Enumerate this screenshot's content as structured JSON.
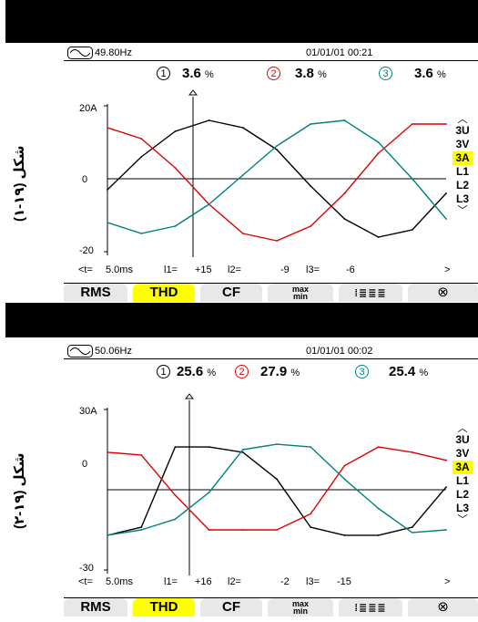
{
  "figures": [
    {
      "caption": "شكل (١٩-١)",
      "status": {
        "frequency": "49.80Hz",
        "datetime": "01/01/01 00:21"
      },
      "readings": [
        {
          "channel": "1",
          "value": "3.6",
          "unit": "%",
          "color": "#000000"
        },
        {
          "channel": "2",
          "value": "3.8",
          "unit": "%",
          "color": "#e00000"
        },
        {
          "channel": "3",
          "value": "3.6",
          "unit": "%",
          "color": "#008080"
        }
      ],
      "axis": {
        "top": "20A",
        "zero": "0",
        "bottom": "-20"
      },
      "channels": {
        "items": [
          "3U",
          "3V",
          "3A",
          "L1",
          "L2",
          "L3"
        ],
        "selected": "3A"
      },
      "cursor": {
        "t_label": "<t=",
        "t_value": "5.0ms",
        "l1_label": "l1=",
        "l1_value": "+15",
        "l2_label": "l2=",
        "l2_value": "-9",
        "l3_label": "l3=",
        "l3_value": "-6",
        "arrow": ">"
      },
      "tabs": [
        "RMS",
        "THD",
        "CF",
        "max min",
        "bars",
        "zoom"
      ],
      "selected_tab": "THD",
      "chart_data": {
        "type": "line",
        "ylabel": "A",
        "ylim": [
          -20,
          20
        ],
        "x_ms": [
          0,
          2,
          4,
          6,
          8,
          10,
          12,
          14,
          16,
          18,
          20
        ],
        "series": [
          {
            "channel": "1",
            "color": "#000000",
            "values": [
              -3,
              6,
              13,
              16,
              14,
              8,
              -2,
              -11,
              -16,
              -14,
              -4
            ]
          },
          {
            "channel": "2",
            "color": "#e00000",
            "values": [
              14,
              11,
              3,
              -7,
              -15,
              -17,
              -13,
              -4,
              7,
              15,
              15
            ]
          },
          {
            "channel": "3",
            "color": "#008080",
            "values": [
              -12,
              -15,
              -13,
              -7,
              1,
              9,
              15,
              16,
              10,
              0,
              -11
            ]
          }
        ]
      }
    },
    {
      "caption": "شكل (١٩-٢)",
      "status": {
        "frequency": "50.06Hz",
        "datetime": "01/01/01 00:02"
      },
      "readings": [
        {
          "channel": "1",
          "value": "25.6",
          "unit": "%",
          "color": "#000000"
        },
        {
          "channel": "2",
          "value": "27.9",
          "unit": "%",
          "color": "#e00000"
        },
        {
          "channel": "3",
          "value": "25.4",
          "unit": "%",
          "color": "#008080"
        }
      ],
      "axis": {
        "top": "30A",
        "zero": "0",
        "bottom": "-30"
      },
      "channels": {
        "items": [
          "3U",
          "3V",
          "3A",
          "L1",
          "L2",
          "L3"
        ],
        "selected": "3A"
      },
      "cursor": {
        "t_label": "<t=",
        "t_value": "5.0ms",
        "l1_label": "l1=",
        "l1_value": "+16",
        "l2_label": "l2=",
        "l2_value": "-2",
        "l3_label": "l3=",
        "l3_value": "-15",
        "arrow": ">"
      },
      "tabs": [
        "RMS",
        "THD",
        "CF",
        "max min",
        "bars",
        "zoom"
      ],
      "selected_tab": "THD",
      "chart_data": {
        "type": "line",
        "ylabel": "A",
        "ylim": [
          -30,
          30
        ],
        "x_ms": [
          0,
          2,
          4,
          6,
          8,
          10,
          12,
          14,
          16,
          18,
          20
        ],
        "series": [
          {
            "channel": "1",
            "color": "#000000",
            "values": [
              -17,
              -14,
              16,
              16,
              14,
              4,
              -14,
              -17,
              -17,
              -14,
              1
            ]
          },
          {
            "channel": "2",
            "color": "#e00000",
            "values": [
              14,
              13,
              -2,
              -15,
              -15,
              -15,
              -9,
              9,
              16,
              14,
              11
            ]
          },
          {
            "channel": "3",
            "color": "#008080",
            "values": [
              -17,
              -15,
              -11,
              -1,
              15,
              17,
              16,
              4,
              -7,
              -16,
              -15
            ]
          }
        ]
      }
    }
  ]
}
